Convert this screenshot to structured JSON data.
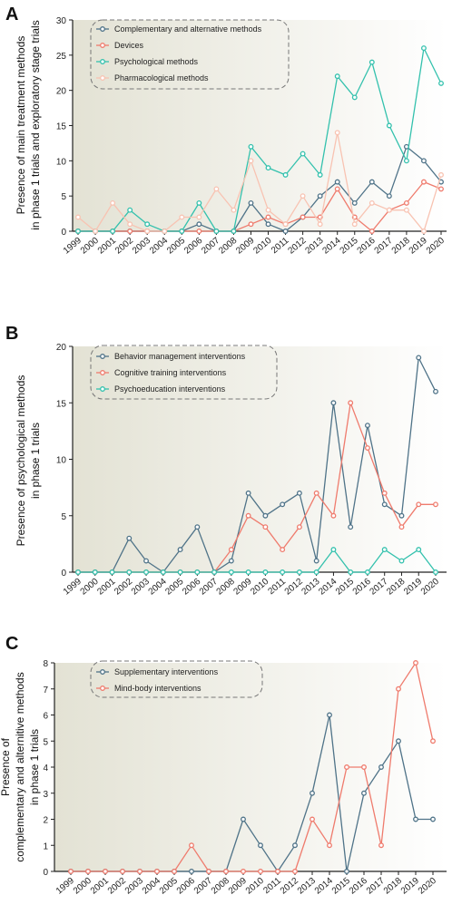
{
  "colors": {
    "slate": "#4f7388",
    "salmon": "#ef7b6d",
    "teal": "#33c1ad",
    "peach": "#f8c3b2",
    "axis": "#222222",
    "bg_left": "#e3e2d4",
    "bg_right": "#ffffff"
  },
  "chart_data": [
    {
      "type": "line",
      "panel": "A",
      "title": "",
      "ylabel": "Presence of main treatment methods in phase 1 trials and exploratory stage trials",
      "ylabel_lines": [
        "Presence of main treatment methods",
        "in phase 1 trials and exploratory stage trials"
      ],
      "xlabel": "",
      "categories": [
        "1999",
        "2000",
        "2001",
        "2002",
        "2003",
        "2004",
        "2005",
        "2006",
        "2007",
        "2008",
        "2009",
        "2010",
        "2011",
        "2012",
        "2013",
        "2014",
        "2015",
        "2016",
        "2017",
        "2018",
        "2019",
        "2020"
      ],
      "ylim": [
        0,
        30
      ],
      "yticks": [
        0,
        5,
        10,
        15,
        20,
        25,
        30
      ],
      "legend_position": "top-left",
      "grid": false,
      "series": [
        {
          "name": "Complementary and alternative methods",
          "color": "#4f7388",
          "values": [
            0,
            0,
            0,
            0,
            0,
            0,
            0,
            1,
            0,
            0,
            4,
            1,
            0,
            2,
            5,
            7,
            4,
            7,
            5,
            12,
            10,
            7
          ]
        },
        {
          "name": "Devices",
          "color": "#ef7b6d",
          "values": [
            0,
            0,
            0,
            0,
            0,
            0,
            0,
            0,
            0,
            0,
            1,
            2,
            1,
            2,
            2,
            6,
            2,
            0,
            3,
            4,
            7,
            6
          ]
        },
        {
          "name": "Psychological methods",
          "color": "#33c1ad",
          "values": [
            0,
            0,
            0,
            3,
            1,
            0,
            0,
            4,
            0,
            0,
            12,
            9,
            8,
            11,
            8,
            22,
            19,
            24,
            15,
            10,
            26,
            21
          ]
        },
        {
          "name": "Pharmacological methods",
          "color": "#f8c3b2",
          "values": [
            2,
            0,
            4,
            1,
            0,
            0,
            2,
            2,
            6,
            3,
            10,
            3,
            1,
            5,
            1,
            14,
            1,
            4,
            3,
            3,
            0,
            8
          ]
        }
      ]
    },
    {
      "type": "line",
      "panel": "B",
      "title": "",
      "ylabel": "Presence of psychological methods in phase 1 trials",
      "ylabel_lines": [
        "Presence of psychological methods",
        "in phase 1 trials"
      ],
      "xlabel": "",
      "categories": [
        "1999",
        "2000",
        "2001",
        "2002",
        "2003",
        "2004",
        "2005",
        "2006",
        "2007",
        "2008",
        "2009",
        "2010",
        "2011",
        "2012",
        "2013",
        "2014",
        "2015",
        "2016",
        "2017",
        "2018",
        "2019",
        "2020"
      ],
      "ylim": [
        0,
        20
      ],
      "yticks": [
        0,
        5,
        10,
        15,
        20
      ],
      "legend_position": "top-left",
      "grid": false,
      "series": [
        {
          "name": "Behavior management interventions",
          "color": "#4f7388",
          "values": [
            0,
            0,
            0,
            3,
            1,
            0,
            2,
            4,
            0,
            1,
            7,
            5,
            6,
            7,
            1,
            15,
            4,
            13,
            6,
            5,
            19,
            16
          ]
        },
        {
          "name": "Cognitive training interventions",
          "color": "#ef7b6d",
          "values": [
            0,
            0,
            0,
            0,
            0,
            0,
            0,
            0,
            0,
            2,
            5,
            4,
            2,
            4,
            7,
            5,
            15,
            11,
            7,
            4,
            6,
            6
          ]
        },
        {
          "name": "Psychoeducation interventions",
          "color": "#33c1ad",
          "values": [
            0,
            0,
            0,
            0,
            0,
            0,
            0,
            0,
            0,
            0,
            0,
            0,
            0,
            0,
            0,
            2,
            0,
            0,
            2,
            1,
            2,
            0
          ]
        }
      ]
    },
    {
      "type": "line",
      "panel": "C",
      "title": "",
      "ylabel": "Presence of complementary and alternitive methods in phase 1 trials",
      "ylabel_lines": [
        "Presence of",
        "complementary and alternitive methods",
        "in phase 1 trials"
      ],
      "xlabel": "",
      "categories": [
        "1999",
        "2000",
        "2001",
        "2002",
        "2003",
        "2004",
        "2005",
        "2006",
        "2007",
        "2008",
        "2009",
        "2010",
        "2011",
        "2012",
        "2013",
        "2014",
        "2015",
        "2016",
        "2017",
        "2018",
        "2019",
        "2020"
      ],
      "ylim": [
        0,
        8
      ],
      "yticks": [
        0,
        1,
        2,
        3,
        4,
        5,
        6,
        7,
        8
      ],
      "legend_position": "top-left",
      "grid": false,
      "series": [
        {
          "name": "Supplementary interventions",
          "color": "#4f7388",
          "values": [
            0,
            0,
            0,
            0,
            0,
            0,
            0,
            0,
            0,
            0,
            2,
            1,
            0,
            1,
            3,
            6,
            0,
            3,
            4,
            5,
            2,
            2
          ]
        },
        {
          "name": "Mind-body interventions",
          "color": "#ef7b6d",
          "values": [
            0,
            0,
            0,
            0,
            0,
            0,
            0,
            1,
            0,
            0,
            0,
            0,
            0,
            0,
            2,
            1,
            4,
            4,
            1,
            7,
            8,
            5
          ]
        }
      ]
    }
  ]
}
